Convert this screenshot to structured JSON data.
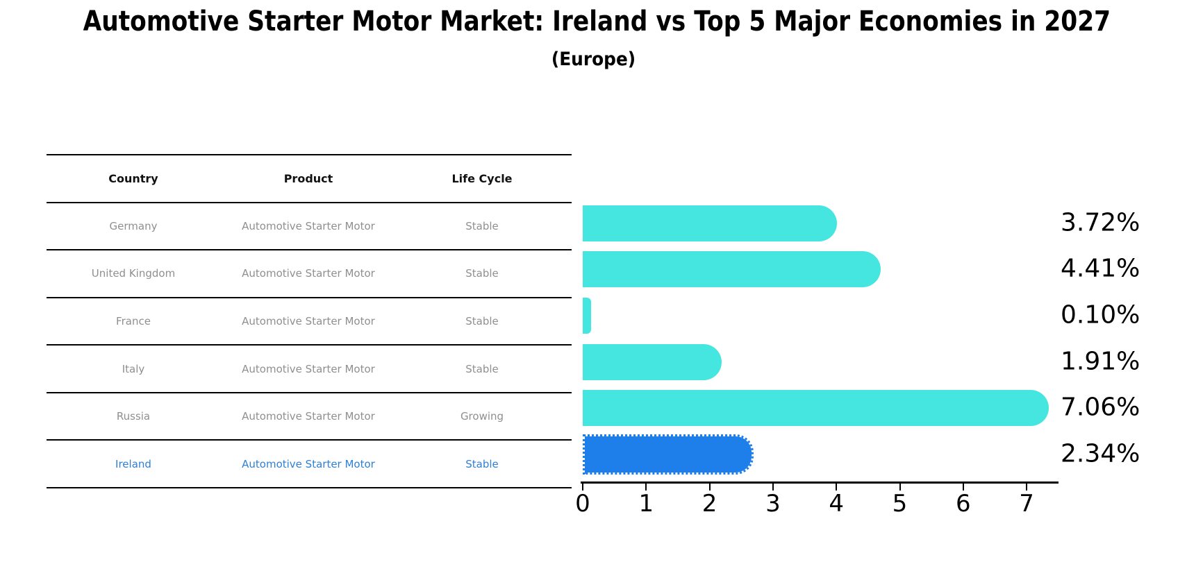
{
  "title": "Automotive Starter Motor Market: Ireland vs Top 5 Major Economies in 2027",
  "subtitle": "(Europe)",
  "table": {
    "headers": [
      "Country",
      "Product",
      "Life Cycle"
    ],
    "rows": [
      {
        "country": "Germany",
        "product": "Automotive Starter Motor",
        "life_cycle": "Stable",
        "value": 3.72,
        "value_label": "3.72%",
        "highlight": false
      },
      {
        "country": "United Kingdom",
        "product": "Automotive Starter Motor",
        "life_cycle": "Stable",
        "value": 4.41,
        "value_label": "4.41%",
        "highlight": false
      },
      {
        "country": "France",
        "product": "Automotive Starter Motor",
        "life_cycle": "Stable",
        "value": 0.1,
        "value_label": "0.10%",
        "highlight": false
      },
      {
        "country": "Italy",
        "product": "Automotive Starter Motor",
        "life_cycle": "Stable",
        "value": 1.91,
        "value_label": "1.91%",
        "highlight": false
      },
      {
        "country": "Russia",
        "product": "Automotive Starter Motor",
        "life_cycle": "Growing",
        "value": 7.06,
        "value_label": "7.06%",
        "highlight": false
      },
      {
        "country": "Ireland",
        "product": "Automotive Starter Motor",
        "life_cycle": "Stable",
        "value": 2.34,
        "value_label": "2.34%",
        "highlight": true
      }
    ]
  },
  "chart_data": {
    "type": "bar",
    "orientation": "horizontal",
    "title": "Automotive Starter Motor Market: Ireland vs Top 5 Major Economies in 2027",
    "subtitle": "(Europe)",
    "categories": [
      "Germany",
      "United Kingdom",
      "France",
      "Italy",
      "Russia",
      "Ireland"
    ],
    "values": [
      3.72,
      4.41,
      0.1,
      1.91,
      7.06,
      2.34
    ],
    "value_labels": [
      "3.72%",
      "4.41%",
      "0.10%",
      "1.91%",
      "7.06%",
      "2.34%"
    ],
    "x_ticks": [
      0,
      1,
      2,
      3,
      4,
      5,
      6,
      7
    ],
    "xlim": [
      0,
      7.5
    ],
    "grid": false,
    "legend": false,
    "highlight_category": "Ireland"
  },
  "colors": {
    "bar": "#45E6E0",
    "highlight_bar": "#1E7FEB",
    "highlight_text": "#2E7FD6",
    "text": "#000000",
    "muted_text": "#8f8f8f"
  }
}
